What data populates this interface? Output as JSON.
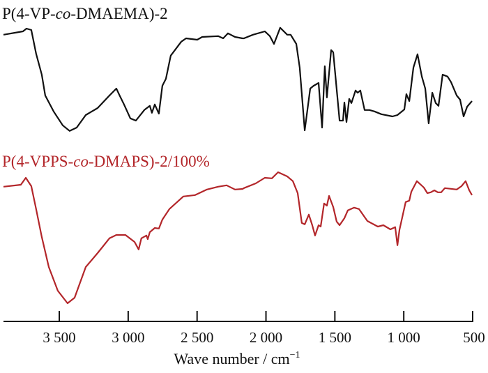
{
  "chart_data": {
    "type": "line",
    "xlabel": "Wave number / cm",
    "xlabel_superscript": "−1",
    "ylabel": "",
    "xlim": [
      3905,
      500
    ],
    "x_reversed": true,
    "ylim": [
      0,
      110
    ],
    "y_tick_labels_shown": false,
    "grid": false,
    "x_ticks": [
      3500,
      3000,
      2500,
      2000,
      1500,
      1000,
      500
    ],
    "x_tick_labels": [
      "3 500",
      "3 000",
      "2 500",
      "2 000",
      "1 500",
      "1 000",
      "500"
    ],
    "series": [
      {
        "name_parts": [
          "P(4-VP-",
          "co",
          "-DMAEMA)-2"
        ],
        "color": "#111111",
        "x": [
          3905,
          3764,
          3738,
          3703,
          3668,
          3627,
          3602,
          3541,
          3475,
          3425,
          3374,
          3308,
          3222,
          3136,
          3086,
          3060,
          3030,
          2984,
          2944,
          2883,
          2843,
          2828,
          2807,
          2777,
          2752,
          2726,
          2691,
          2615,
          2580,
          2499,
          2463,
          2347,
          2311,
          2276,
          2225,
          2170,
          2160,
          2094,
          2008,
          1972,
          1942,
          1897,
          1846,
          1821,
          1780,
          1755,
          1719,
          1679,
          1654,
          1618,
          1593,
          1573,
          1558,
          1527,
          1512,
          1466,
          1441,
          1431,
          1416,
          1396,
          1380,
          1350,
          1335,
          1315,
          1284,
          1249,
          1213,
          1163,
          1082,
          1046,
          996,
          981,
          960,
          930,
          900,
          869,
          844,
          819,
          793,
          768,
          748,
          718,
          682,
          657,
          616,
          591,
          566,
          540,
          505
        ],
        "y": [
          102.8,
          104,
          105,
          104.5,
          96,
          88.5,
          81,
          75.3,
          70.3,
          68.3,
          69.5,
          74,
          76.5,
          81,
          83.5,
          80.8,
          77.8,
          72.8,
          72,
          75.8,
          77.3,
          74.8,
          77.8,
          74.5,
          84.5,
          87,
          95.3,
          100.3,
          101.5,
          101,
          102,
          102.3,
          101.5,
          103.3,
          102,
          101.5,
          101.5,
          102.8,
          104,
          102.3,
          99.5,
          105.3,
          102.8,
          102.8,
          99.5,
          91,
          68.5,
          83.5,
          84.5,
          85.5,
          69.5,
          91.5,
          80.3,
          97.3,
          96.5,
          72,
          72,
          78.5,
          71.5,
          79.8,
          78.3,
          82.8,
          82,
          82.8,
          75.8,
          75.8,
          75.3,
          74.3,
          73.5,
          74,
          76,
          81.5,
          79,
          91,
          95.8,
          87.8,
          83.5,
          71,
          82,
          78.3,
          77.3,
          88.5,
          87.8,
          85.8,
          81,
          79.5,
          73.5,
          77,
          79
        ]
      },
      {
        "name_parts": [
          "P(4-VPPS-",
          "co",
          "-DMAPS)-2/100%"
        ],
        "color": "#b3262a",
        "x": [
          3905,
          3779,
          3743,
          3703,
          3668,
          3627,
          3576,
          3511,
          3440,
          3389,
          3308,
          3222,
          3136,
          3086,
          3020,
          2954,
          2924,
          2904,
          2868,
          2858,
          2843,
          2807,
          2777,
          2752,
          2701,
          2600,
          2514,
          2428,
          2347,
          2286,
          2225,
          2170,
          2160,
          2074,
          2008,
          1957,
          1912,
          1846,
          1805,
          1770,
          1740,
          1719,
          1689,
          1664,
          1644,
          1618,
          1603,
          1578,
          1558,
          1542,
          1512,
          1487,
          1466,
          1431,
          1406,
          1360,
          1325,
          1264,
          1188,
          1148,
          1097,
          1062,
          1046,
          1031,
          986,
          960,
          945,
          905,
          854,
          829,
          804,
          778,
          753,
          728,
          702,
          616,
          581,
          551,
          525,
          505
        ],
        "y": [
          48.3,
          49,
          51.5,
          48.5,
          40.3,
          30.3,
          19.5,
          11,
          6.5,
          8.5,
          19.5,
          24.5,
          29.8,
          31,
          31,
          28.5,
          25.8,
          29.8,
          30.8,
          29.5,
          32,
          33.5,
          33.3,
          36.5,
          40.3,
          44.8,
          45.3,
          47.3,
          48.3,
          48.8,
          47.3,
          47.5,
          47.8,
          49.5,
          51.5,
          51.3,
          53.5,
          52,
          50.3,
          46,
          35.3,
          34.8,
          38.3,
          34.5,
          30.8,
          34.5,
          34,
          42.3,
          41.5,
          45,
          41,
          35.8,
          34.5,
          37,
          39.8,
          40.8,
          40.3,
          36,
          34,
          34.5,
          33,
          33.8,
          27.3,
          32.8,
          42.8,
          43.3,
          46.5,
          50.3,
          48,
          46,
          46.3,
          47,
          46.3,
          46.3,
          47.8,
          47.3,
          48.5,
          50.3,
          47,
          45.3
        ]
      }
    ]
  }
}
